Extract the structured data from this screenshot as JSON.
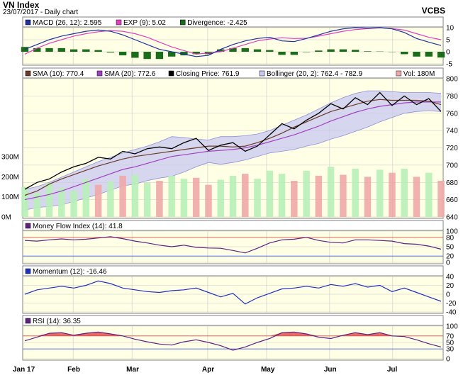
{
  "header": {
    "title": "VN Index",
    "date_line": "23/07/2017 - Daily chart",
    "source": "VCBS"
  },
  "colors": {
    "panel_bg": "#ffffe6",
    "grid": "#c8c8c8",
    "price_line": "#000000",
    "sma10": "#6b3a2a",
    "sma20": "#a040c0",
    "bollinger_fill": "#c8c8f0",
    "bollinger_line": "#9090d8",
    "vol_up": "#b8f0b8",
    "vol_down": "#f0a8a8",
    "macd": "#2030a0",
    "exp": "#e040c0",
    "divergence": "#1a6e1a",
    "mfi": "#602080",
    "momentum": "#2030c0",
    "rsi": "#602080",
    "band_red": "#e05050",
    "band_blue": "#4060e0"
  },
  "chart_data": [
    {
      "type": "line",
      "panel": "macd",
      "legend": [
        "MACD (26, 12): 2.595",
        "EXP (9): 5.02",
        "Divergence: -2.425"
      ],
      "ylim": [
        -5,
        10
      ],
      "yticks": [
        "10",
        "5",
        "0",
        "-5"
      ],
      "series": [
        {
          "name": "MACD (26, 12)",
          "last": 2.595,
          "values": [
            1,
            3,
            5,
            6.5,
            7.5,
            8.5,
            9,
            8.5,
            7,
            5,
            3,
            1,
            0,
            -1,
            -2,
            -1.5,
            1,
            3,
            4.5,
            5.5,
            6,
            4.5,
            4.2,
            5.5,
            7,
            8.5,
            9.5,
            10,
            9.8,
            10,
            9.5,
            8,
            5.5,
            4,
            2.6
          ]
        },
        {
          "name": "EXP (9)",
          "last": 5.02,
          "values": [
            -1,
            1.5,
            3.5,
            5,
            6.5,
            7.5,
            8.3,
            8.8,
            8.5,
            7.5,
            6,
            4,
            2,
            0.5,
            -1,
            -0.5,
            0,
            1.5,
            3,
            4.5,
            5.3,
            5.8,
            5.5,
            5.6,
            6.5,
            7.5,
            8.5,
            9.2,
            9.6,
            9.9,
            9.6,
            9,
            7.5,
            6,
            5
          ]
        },
        {
          "name": "Divergence",
          "last": -2.425,
          "values": [
            2,
            1.5,
            1.5,
            1.5,
            1,
            1,
            0.7,
            -0.3,
            -1.5,
            -2.5,
            -3,
            -3,
            -2,
            -1.5,
            -1,
            -1,
            1,
            1.5,
            1.5,
            1,
            0.7,
            -1.3,
            -1.3,
            0,
            0.5,
            1,
            1,
            0.8,
            0.2,
            0.1,
            -0.1,
            -1,
            -2,
            -2,
            -2.4
          ]
        }
      ]
    },
    {
      "type": "line",
      "panel": "price",
      "legend": [
        "SMA (10): 770.4",
        "SMA (20): 772.6",
        "Closing Price: 761.9",
        "Bollinger (20, 2): 762.4 - 782.9",
        "Vol: 180M"
      ],
      "ylim": [
        640,
        800
      ],
      "yticks": [
        "800",
        "780",
        "760",
        "740",
        "720",
        "700",
        "680",
        "660",
        "640"
      ],
      "volume_ylim": [
        0,
        300
      ],
      "volume_ticks": [
        "300M",
        "200M",
        "100M",
        "0M"
      ],
      "series": [
        {
          "name": "Closing Price",
          "last": 761.9,
          "values": [
            672,
            680,
            684,
            692,
            698,
            702,
            709,
            707,
            716,
            713,
            719,
            721,
            719,
            726,
            731,
            717,
            723,
            726,
            716,
            722,
            735,
            748,
            742,
            752,
            760,
            771,
            765,
            778,
            770,
            784,
            769,
            780,
            770,
            777,
            762
          ]
        },
        {
          "name": "SMA (10)",
          "last": 770.4,
          "values": [
            665,
            670,
            678,
            684,
            689,
            694,
            699,
            703,
            707,
            710,
            712,
            714,
            716,
            718,
            720,
            722,
            722,
            721,
            722,
            726,
            731,
            737,
            744,
            750,
            756,
            762,
            766,
            770,
            774,
            776,
            775,
            775,
            775,
            774,
            770
          ]
        },
        {
          "name": "SMA (20)",
          "last": 772.6,
          "values": [
            660,
            663,
            666,
            670,
            675,
            680,
            685,
            690,
            695,
            698,
            702,
            706,
            710,
            712,
            714,
            716,
            717,
            718,
            720,
            723,
            727,
            731,
            735,
            740,
            745,
            751,
            756,
            761,
            765,
            768,
            770,
            772,
            773,
            773,
            773
          ]
        },
        {
          "name": "Bollinger Upper",
          "last": 782.9,
          "values": [
            672,
            675,
            680,
            686,
            692,
            698,
            704,
            709,
            714,
            718,
            722,
            727,
            733,
            732,
            730,
            729,
            733,
            733,
            734,
            736,
            740,
            746,
            752,
            758,
            765,
            772,
            778,
            783,
            786,
            786,
            785,
            784,
            784,
            784,
            783
          ]
        },
        {
          "name": "Bollinger Lower",
          "last": 762.4,
          "values": [
            648,
            651,
            652,
            654,
            658,
            662,
            666,
            671,
            676,
            678,
            682,
            685,
            687,
            692,
            698,
            703,
            701,
            703,
            706,
            710,
            714,
            716,
            718,
            722,
            725,
            730,
            734,
            739,
            744,
            750,
            755,
            760,
            762,
            763,
            762
          ]
        }
      ],
      "volume_last": 180,
      "volume": [
        150,
        120,
        170,
        145,
        130,
        190,
        160,
        175,
        205,
        210,
        170,
        180,
        205,
        190,
        195,
        160,
        185,
        205,
        215,
        190,
        230,
        215,
        180,
        230,
        205,
        250,
        210,
        240,
        200,
        235,
        220,
        240,
        200,
        220,
        180
      ],
      "volume_up": [
        true,
        true,
        true,
        true,
        true,
        true,
        false,
        true,
        false,
        true,
        true,
        false,
        true,
        true,
        false,
        false,
        true,
        true,
        false,
        true,
        true,
        true,
        false,
        true,
        false,
        true,
        false,
        true,
        false,
        true,
        false,
        true,
        false,
        true,
        false
      ]
    },
    {
      "type": "line",
      "panel": "mfi",
      "legend": [
        "Money Flow Index (14): 41.8"
      ],
      "ylim": [
        0,
        100
      ],
      "yticks": [
        "100",
        "80",
        "50",
        "20",
        "0"
      ],
      "bands": [
        80,
        20
      ],
      "series": [
        {
          "name": "Money Flow Index (14)",
          "last": 41.8,
          "values": [
            70,
            68,
            72,
            75,
            72,
            74,
            78,
            82,
            76,
            68,
            62,
            55,
            50,
            55,
            48,
            46,
            45,
            38,
            30,
            45,
            62,
            72,
            74,
            80,
            70,
            64,
            62,
            72,
            72,
            70,
            68,
            60,
            58,
            52,
            42
          ]
        }
      ]
    },
    {
      "type": "line",
      "panel": "momentum",
      "legend": [
        "Momentum (12): -16.46"
      ],
      "ylim": [
        -40,
        40
      ],
      "yticks": [
        "40",
        "20",
        "0",
        "-20",
        "-40"
      ],
      "series": [
        {
          "name": "Momentum (12)",
          "last": -16.46,
          "values": [
            0,
            10,
            14,
            18,
            14,
            20,
            30,
            24,
            14,
            10,
            6,
            4,
            8,
            10,
            14,
            4,
            -6,
            2,
            -22,
            -8,
            2,
            12,
            14,
            18,
            14,
            22,
            18,
            24,
            16,
            20,
            6,
            14,
            4,
            -6,
            -16
          ]
        }
      ]
    },
    {
      "type": "line",
      "panel": "rsi",
      "legend": [
        "RSI (14): 36.35"
      ],
      "ylim": [
        0,
        100
      ],
      "yticks": [
        "100",
        "70",
        "50",
        "30",
        "0"
      ],
      "bands": [
        70,
        30
      ],
      "series": [
        {
          "name": "RSI (14)",
          "last": 36.35,
          "values": [
            55,
            66,
            78,
            80,
            72,
            78,
            82,
            76,
            70,
            60,
            52,
            45,
            42,
            52,
            58,
            50,
            40,
            26,
            36,
            50,
            62,
            80,
            82,
            76,
            66,
            62,
            72,
            80,
            74,
            80,
            70,
            68,
            58,
            46,
            36
          ]
        }
      ]
    }
  ],
  "x_axis": {
    "labels": [
      "Jan 17",
      "Feb",
      "Mar",
      "Apr",
      "May",
      "Jun",
      "Jul"
    ],
    "label_fracs": [
      0,
      0.12,
      0.26,
      0.44,
      0.58,
      0.73,
      0.88
    ]
  }
}
